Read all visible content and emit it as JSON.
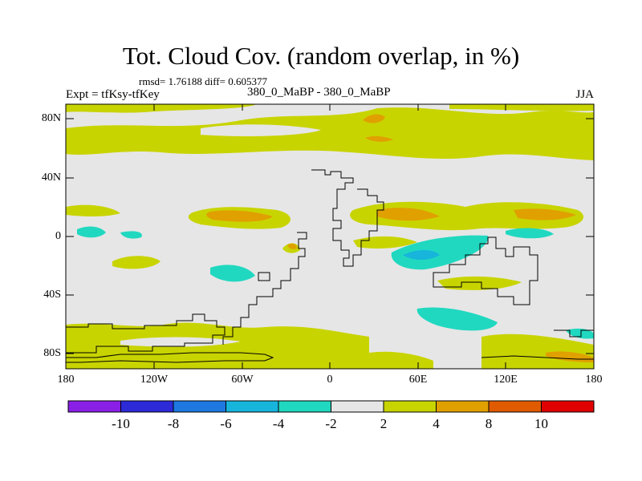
{
  "title": "Tot. Cloud Cov. (random overlap, in %)",
  "stats": "rmsd= 1.76188 diff= 0.605377",
  "expt": "Expt = tfKsy-tfKey",
  "cases": "380_0_MaBP - 380_0_MaBP",
  "season": "JJA",
  "lat_labels": [
    "80N",
    "40N",
    "0",
    "40S",
    "80S"
  ],
  "lon_labels": [
    "180",
    "120W",
    "60W",
    "0",
    "60E",
    "120E",
    "180"
  ],
  "colorbar": {
    "labels": [
      "-10",
      "-8",
      "-6",
      "-4",
      "-2",
      "2",
      "4",
      "8",
      "10"
    ],
    "colors": [
      "#8a1fe6",
      "#2d2ad8",
      "#1e78e0",
      "#17b4dc",
      "#20d8c0",
      "#e6e6e6",
      "#c8d400",
      "#e0a000",
      "#e05a00",
      "#e00000"
    ]
  },
  "legend_colors": {
    "neutral": "#e6e6e6",
    "pos_2_4": "#c8d400",
    "pos_4_8": "#e0a000",
    "neg_2_4": "#20d8c0",
    "neg_4_6": "#17b4dc"
  }
}
